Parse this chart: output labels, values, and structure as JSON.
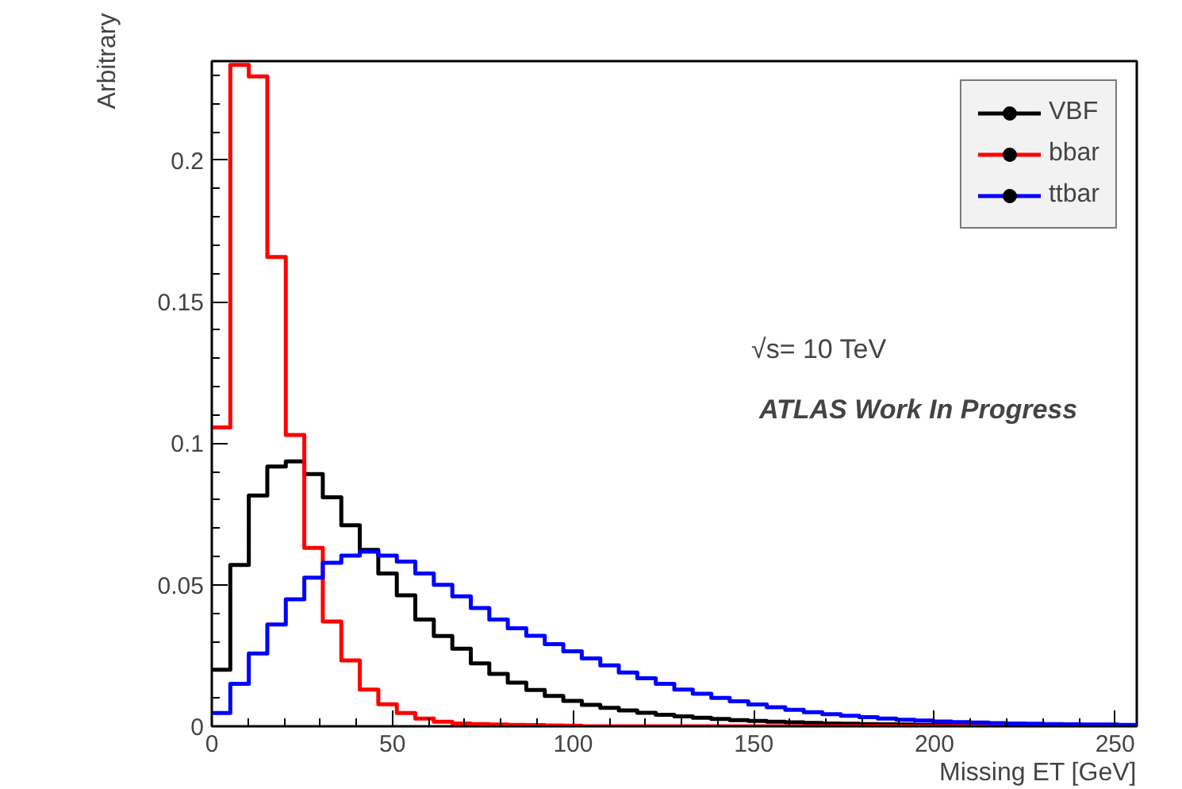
{
  "chart_data": {
    "type": "histogram",
    "xlabel": "Missing ET [GeV]",
    "ylabel": "Arbitrary",
    "bins": [
      0,
      5.12,
      10.24,
      15.36,
      20.48,
      25.6,
      30.72,
      35.84,
      40.96,
      46.08,
      51.2,
      56.32,
      61.44,
      66.56,
      71.68,
      76.8,
      81.92,
      87.04,
      92.16,
      97.28,
      102.4,
      107.52,
      112.64,
      117.76,
      122.88,
      128,
      133.12,
      138.24,
      143.36,
      148.48,
      153.6,
      158.72,
      163.84,
      168.96,
      174.08,
      179.2,
      184.32,
      189.44,
      194.56,
      199.68,
      204.8,
      209.92,
      215.04,
      220.16,
      225.28,
      230.4,
      235.52,
      240.64,
      245.76,
      250.88,
      256
    ],
    "series": [
      {
        "name": "VBF",
        "color": "#000000",
        "values": [
          0.02,
          0.057,
          0.0815,
          0.0918,
          0.0936,
          0.0891,
          0.0809,
          0.071,
          0.0623,
          0.054,
          0.0463,
          0.0377,
          0.0319,
          0.0274,
          0.0222,
          0.0185,
          0.0154,
          0.0128,
          0.0107,
          0.009,
          0.0076,
          0.0065,
          0.0056,
          0.0048,
          0.0041,
          0.0035,
          0.003,
          0.0026,
          0.0022,
          0.0019,
          0.0016,
          0.0014,
          0.0012,
          0.001,
          0.0009,
          0.0008,
          0.0007,
          0.0006,
          0.0005,
          0.0005,
          0.0004,
          0.0004,
          0.0003,
          0.0003,
          0.0003,
          0.0002,
          0.0002,
          0.0002,
          0.0002,
          0.0002
        ]
      },
      {
        "name": "bbar",
        "color": "#ff0000",
        "values": [
          0.1056,
          0.2337,
          0.2296,
          0.1658,
          0.1029,
          0.063,
          0.037,
          0.0233,
          0.013,
          0.0078,
          0.0047,
          0.0027,
          0.0016,
          0.001,
          0.0008,
          0.0006,
          0.0005,
          0.0004,
          0.0003,
          0.0002,
          0,
          0,
          0,
          0,
          0,
          0,
          0,
          0,
          0,
          0,
          0,
          0,
          0,
          0,
          0,
          0,
          0,
          0,
          0,
          0,
          0,
          0,
          0,
          0,
          0,
          0,
          0,
          0,
          0,
          0
        ]
      },
      {
        "name": "ttbar",
        "color": "#0000ff",
        "values": [
          0.0047,
          0.015,
          0.0257,
          0.036,
          0.0449,
          0.0525,
          0.0578,
          0.0603,
          0.0617,
          0.0603,
          0.0582,
          0.054,
          0.05,
          0.0459,
          0.0418,
          0.0377,
          0.0346,
          0.032,
          0.029,
          0.0265,
          0.024,
          0.0215,
          0.019,
          0.017,
          0.015,
          0.013,
          0.0115,
          0.01,
          0.0088,
          0.0077,
          0.0067,
          0.0058,
          0.005,
          0.0043,
          0.0037,
          0.0032,
          0.0027,
          0.0023,
          0.002,
          0.0017,
          0.0015,
          0.0013,
          0.0011,
          0.001,
          0.0009,
          0.0008,
          0.0007,
          0.0006,
          0.0006,
          0.0005
        ]
      }
    ],
    "xlim": [
      0,
      256
    ],
    "ylim": [
      0,
      0.235
    ],
    "xticks": [
      0,
      50,
      100,
      150,
      200,
      250
    ],
    "yticks": [
      {
        "value": 0,
        "label": "0"
      },
      0.05,
      0.1,
      0.15,
      0.2
    ],
    "annotations": [
      "√s= 10 TeV",
      "ATLAS Work In Progress"
    ],
    "legend": "top right",
    "marker": "circle",
    "grid": false
  }
}
